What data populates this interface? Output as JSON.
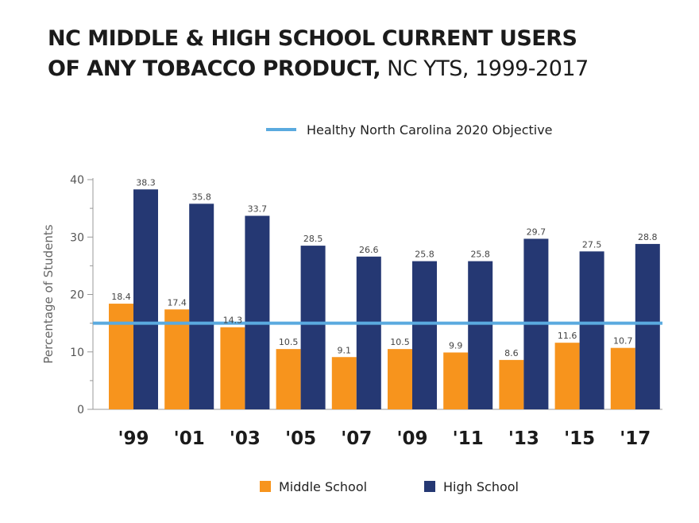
{
  "title": {
    "line1": "NC MIDDLE & HIGH SCHOOL CURRENT USERS",
    "line2_bold": "OF ANY TOBACCO PRODUCT,",
    "line2_light": " NC YTS, 1999-2017"
  },
  "chart_data": {
    "type": "bar",
    "ylabel": "Percentage of Students",
    "xlabel": "",
    "ylim": [
      0,
      40
    ],
    "yticks": [
      0,
      10,
      20,
      30,
      40
    ],
    "categories": [
      "'99",
      "'01",
      "'03",
      "'05",
      "'07",
      "'09",
      "'11",
      "'13",
      "'15",
      "'17"
    ],
    "series": [
      {
        "name": "Middle School",
        "color": "#f7941d",
        "values": [
          18.4,
          17.4,
          14.3,
          10.5,
          9.1,
          10.5,
          9.9,
          8.6,
          11.6,
          10.7
        ]
      },
      {
        "name": "High School",
        "color": "#253873",
        "values": [
          38.3,
          35.8,
          33.7,
          28.5,
          26.6,
          25.8,
          25.8,
          29.7,
          27.5,
          28.8
        ]
      }
    ],
    "reference_line": {
      "name": "Healthy North Carolina 2020 Objective",
      "value": 15,
      "color": "#5aaadf"
    },
    "legend_position": "bottom",
    "grid": false
  }
}
